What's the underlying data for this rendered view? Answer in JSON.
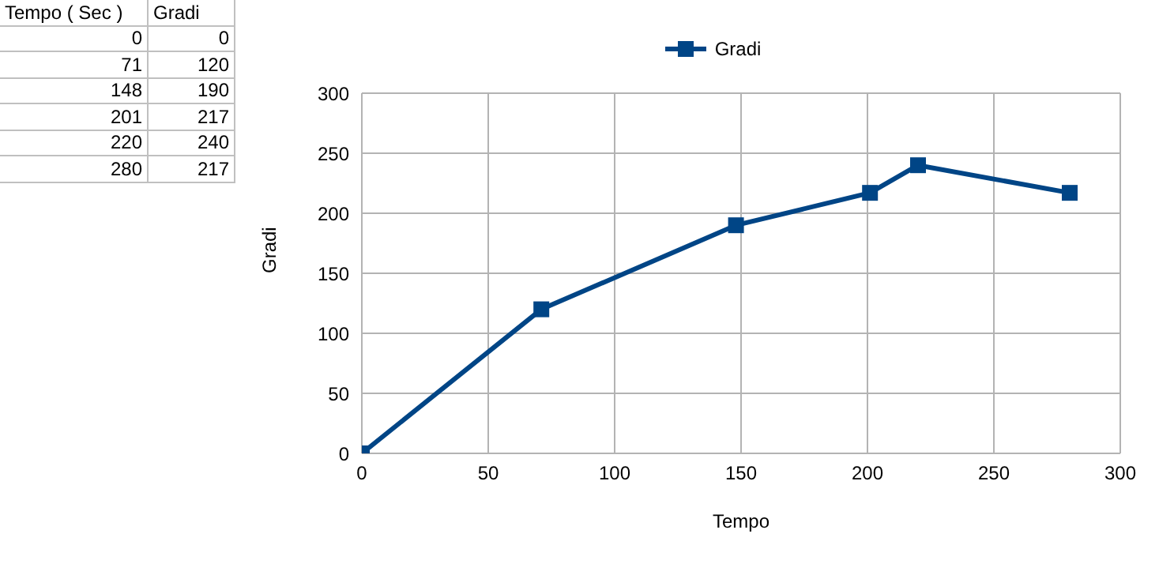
{
  "chart_data": [
    {
      "type": "other",
      "annotations": [
        "Tempo ( Sec )",
        "Gradi",
        "0",
        "0",
        "71",
        "120",
        "148",
        "190",
        "201",
        "217",
        "220",
        "240",
        "280",
        "217"
      ]
    },
    {
      "type": "line",
      "xlabel": "Tempo",
      "ylabel": "Gradi",
      "x": [
        0,
        71,
        148,
        201,
        220,
        280
      ],
      "series": [
        {
          "name": "Gradi",
          "color": "#004586",
          "values": [
            0,
            120,
            190,
            217,
            240,
            217
          ]
        }
      ],
      "xlim": [
        0,
        300
      ],
      "xticks": [
        0,
        50,
        100,
        150,
        200,
        250,
        300
      ],
      "ylim": [
        0,
        300
      ],
      "yticks": [
        0,
        50,
        100,
        150,
        200,
        250,
        300
      ],
      "grid": true,
      "legend": "top",
      "marker": "square",
      "line_style": "solid"
    }
  ]
}
